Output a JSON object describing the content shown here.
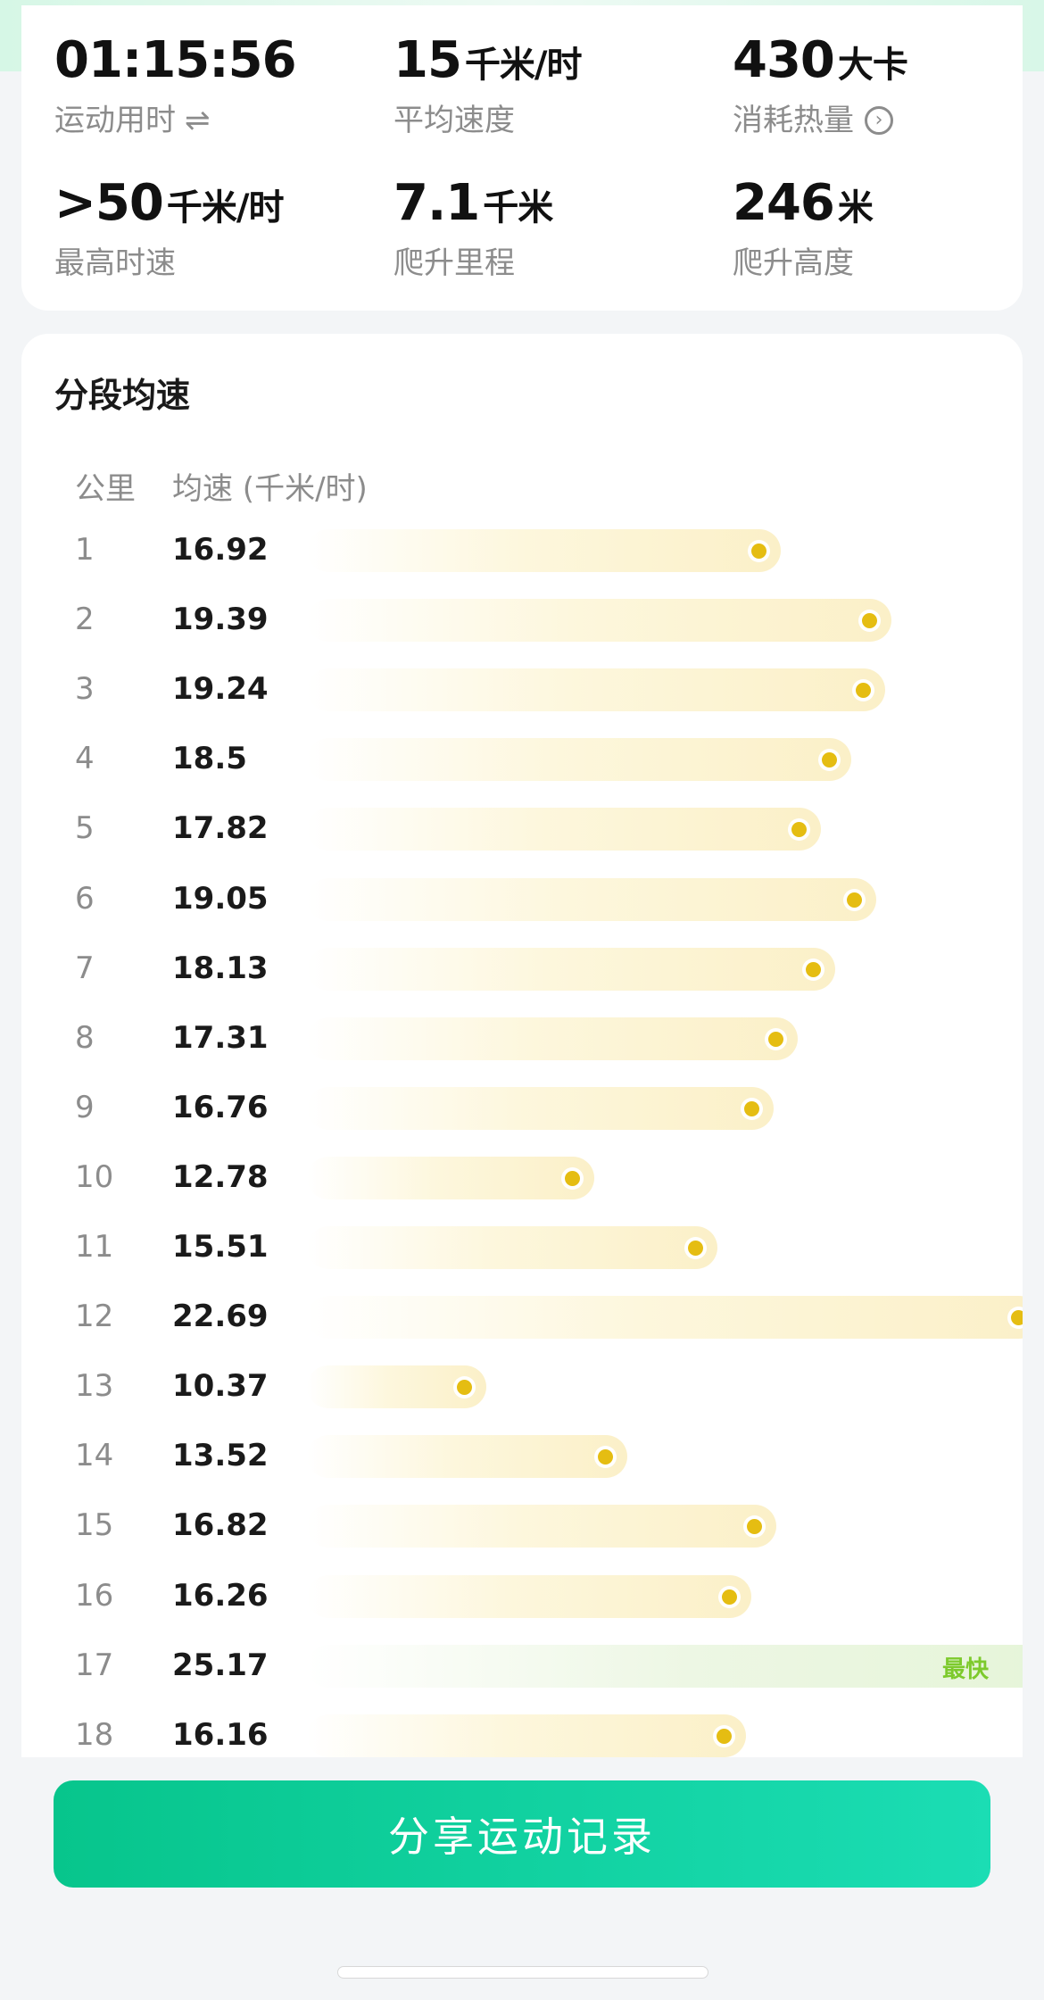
{
  "stats": [
    {
      "value": "01:15:56",
      "unit": "",
      "label": "运动用时",
      "icon": "swap-icon"
    },
    {
      "value": "15",
      "unit": "千米/时",
      "label": "平均速度",
      "icon": ""
    },
    {
      "value": "430",
      "unit": "大卡",
      "label": "消耗热量",
      "icon": "info-circle-icon"
    },
    {
      "value": ">50",
      "unit": "千米/时",
      "label": "最高时速",
      "icon": ""
    },
    {
      "value": "7.1",
      "unit": "千米",
      "label": "爬升里程",
      "icon": ""
    },
    {
      "value": "246",
      "unit": "米",
      "label": "爬升高度",
      "icon": ""
    }
  ],
  "split_section": {
    "title": "分段均速",
    "col_km": "公里",
    "col_speed": "均速 (千米/时)",
    "fastest_label": "最快",
    "bar_color": "#fbf0c8",
    "dot_color": "#e5bd12",
    "fastest_color": "#7dca2c"
  },
  "splits": [
    {
      "km": "1",
      "speed": "16.92"
    },
    {
      "km": "2",
      "speed": "19.39"
    },
    {
      "km": "3",
      "speed": "19.24"
    },
    {
      "km": "4",
      "speed": "18.5"
    },
    {
      "km": "5",
      "speed": "17.82"
    },
    {
      "km": "6",
      "speed": "19.05"
    },
    {
      "km": "7",
      "speed": "18.13"
    },
    {
      "km": "8",
      "speed": "17.31"
    },
    {
      "km": "9",
      "speed": "16.76"
    },
    {
      "km": "10",
      "speed": "12.78"
    },
    {
      "km": "11",
      "speed": "15.51"
    },
    {
      "km": "12",
      "speed": "22.69"
    },
    {
      "km": "13",
      "speed": "10.37"
    },
    {
      "km": "14",
      "speed": "13.52"
    },
    {
      "km": "15",
      "speed": "16.82"
    },
    {
      "km": "16",
      "speed": "16.26"
    },
    {
      "km": "17",
      "speed": "25.17",
      "fastest": true
    },
    {
      "km": "18",
      "speed": "16.16"
    }
  ],
  "share_button": {
    "label": "分享运动记录",
    "color": "#07c58c"
  }
}
